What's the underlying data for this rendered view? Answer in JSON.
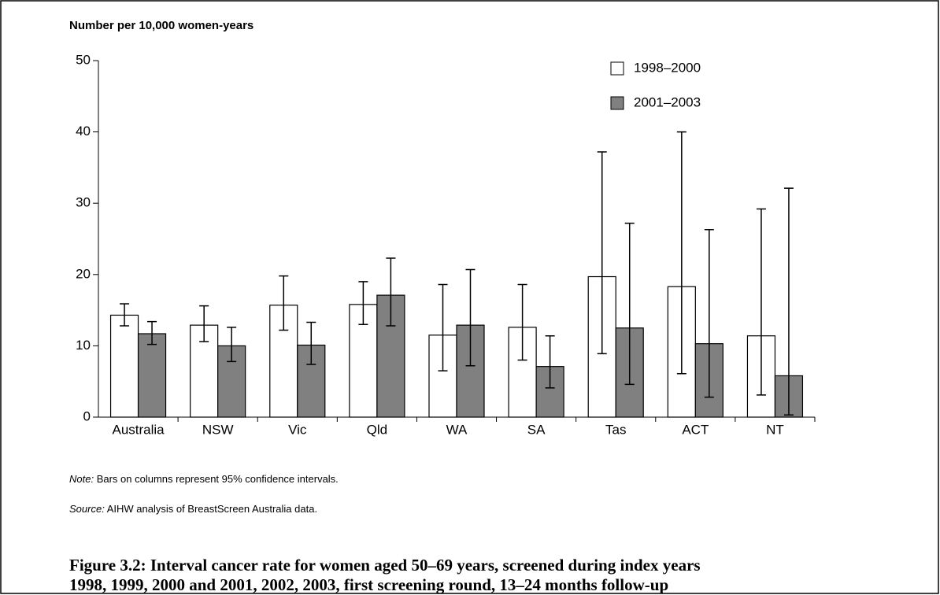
{
  "chart_data": {
    "type": "bar",
    "y_label": "Number per 10,000 women-years",
    "categories": [
      "Australia",
      "NSW",
      "Vic",
      "Qld",
      "WA",
      "SA",
      "Tas",
      "ACT",
      "NT"
    ],
    "series": [
      {
        "name": "1998–2000",
        "color": "#ffffff",
        "values": [
          14.3,
          12.9,
          15.7,
          15.8,
          11.5,
          12.6,
          19.7,
          18.3,
          11.4
        ],
        "lower": [
          12.8,
          10.6,
          12.2,
          13.0,
          6.5,
          8.0,
          8.9,
          6.1,
          3.1
        ],
        "upper": [
          15.9,
          15.6,
          19.8,
          19.0,
          18.6,
          18.6,
          37.2,
          40.0,
          29.2
        ]
      },
      {
        "name": "2001–2003",
        "color": "#808080",
        "values": [
          11.7,
          10.0,
          10.1,
          17.1,
          12.9,
          7.1,
          12.5,
          10.3,
          5.8
        ],
        "lower": [
          10.2,
          7.8,
          7.4,
          12.8,
          7.2,
          4.1,
          4.6,
          2.8,
          0.3
        ],
        "upper": [
          13.4,
          12.6,
          13.3,
          22.3,
          20.7,
          11.4,
          27.2,
          26.3,
          32.1
        ]
      }
    ],
    "ylim": [
      0,
      50
    ],
    "yticks": [
      0,
      10,
      20,
      30,
      40,
      50
    ],
    "note": {
      "label": "Note:",
      "text": " Bars on columns represent 95% confidence intervals."
    },
    "source": {
      "label": "Source:",
      "text": " AIHW analysis of BreastScreen Australia data."
    },
    "caption": [
      "Figure 3.2: Interval cancer rate for women aged 50–69 years, screened during index years",
      "1998, 1999, 2000 and 2001, 2002, 2003, first screening round, 13–24 months follow-up"
    ]
  }
}
